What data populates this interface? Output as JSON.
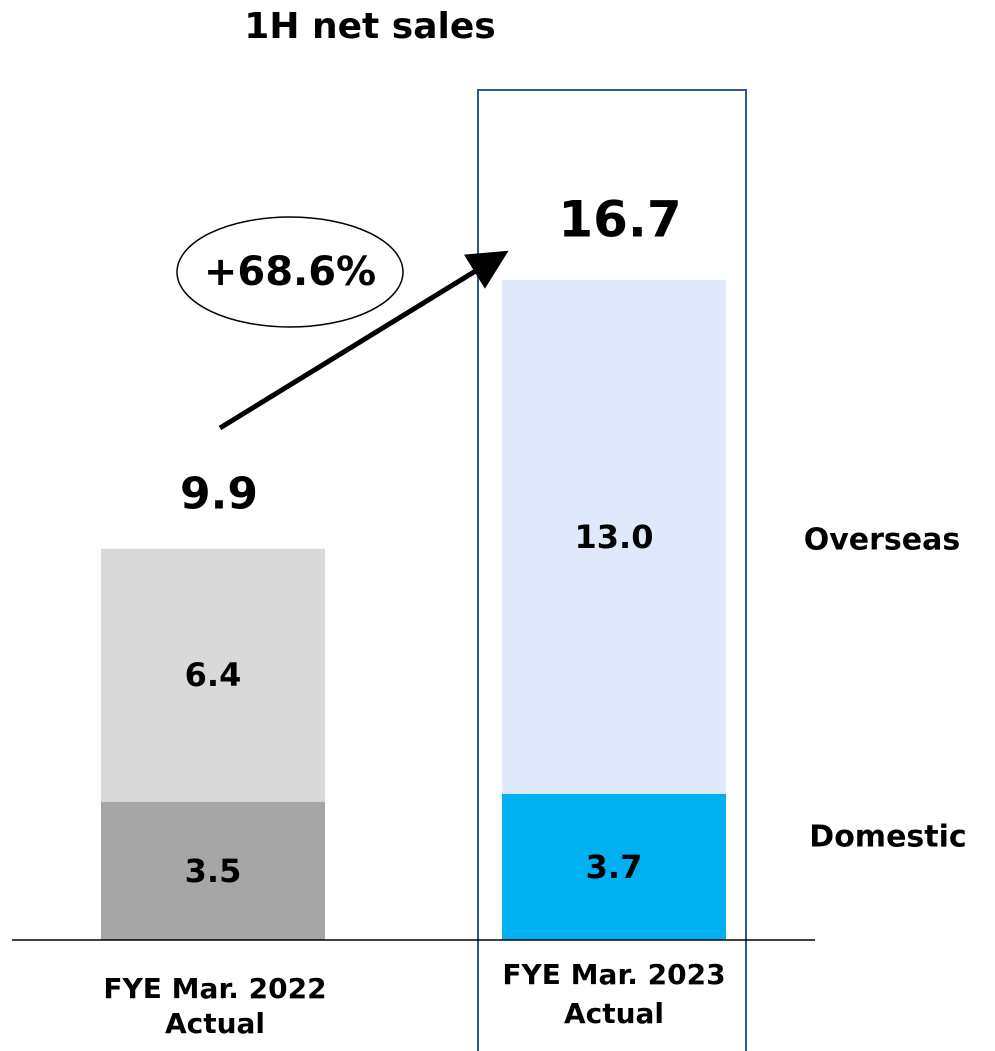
{
  "chart_data": {
    "type": "stacked_bar",
    "title": "1H net sales",
    "categories": [
      [
        "FYE Mar. 2022",
        "Actual"
      ],
      [
        "FYE Mar. 2023",
        "Actual"
      ]
    ],
    "series": [
      {
        "name": "Domestic",
        "colors": [
          "#a6a6a6",
          "#00b0f0"
        ],
        "values": [
          3.5,
          3.7
        ]
      },
      {
        "name": "Overseas",
        "colors": [
          "#d9d9d9",
          "#dfe9fb"
        ],
        "values": [
          6.4,
          13.0
        ],
        "value_labels": [
          "6.4",
          "13.0"
        ]
      }
    ],
    "totals": [
      9.9,
      16.7
    ],
    "annotation": "+68.6%"
  }
}
